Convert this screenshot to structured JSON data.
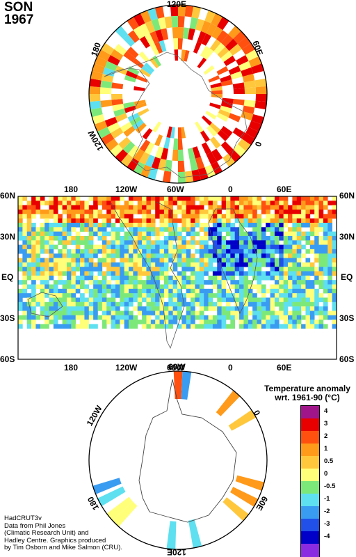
{
  "header": {
    "season": "SON",
    "year": "1967"
  },
  "north_polar": {
    "labels": {
      "top": "120E",
      "right": "60E",
      "left": "180",
      "lower_left": "120W",
      "lower_right": "0"
    }
  },
  "global_map": {
    "x_ticks": [
      "180",
      "120W",
      "60W",
      "0",
      "60E"
    ],
    "y_ticks": [
      "60N",
      "30N",
      "EQ",
      "30S",
      "60S"
    ]
  },
  "south_polar": {
    "labels": {
      "top": "60W",
      "upper_left": "120W",
      "upper_right": "0",
      "lower_left": "180",
      "lower_right": "60E",
      "bottom": "120E"
    }
  },
  "legend": {
    "title_line1": "Temperature anomaly",
    "title_line2": "wrt. 1961-90  (°C)",
    "bins": [
      {
        "label": "4",
        "color": "#a0158a"
      },
      {
        "label": "3",
        "color": "#e80000"
      },
      {
        "label": "2",
        "color": "#ff5010"
      },
      {
        "label": "1",
        "color": "#ff9a1a"
      },
      {
        "label": "0.5",
        "color": "#ffc83c"
      },
      {
        "label": "0",
        "color": "#ffff7a"
      },
      {
        "label": "-0.5",
        "color": "#7de87a"
      },
      {
        "label": "-1",
        "color": "#5ee0f0"
      },
      {
        "label": "-2",
        "color": "#3a9cf0"
      },
      {
        "label": "-3",
        "color": "#2050e8"
      },
      {
        "label": "-4",
        "color": "#0000c8"
      },
      {
        "label": "",
        "color": "#8a2be2"
      }
    ]
  },
  "credit": {
    "line1": "HadCRUT3v",
    "line2": "Data from Phil Jones",
    "line3": "(Climatic Research Unit) and",
    "line4": "Hadley Centre.  Graphics produced",
    "line5": "by Tim Osborn and Mike Salmon (CRU)."
  }
}
